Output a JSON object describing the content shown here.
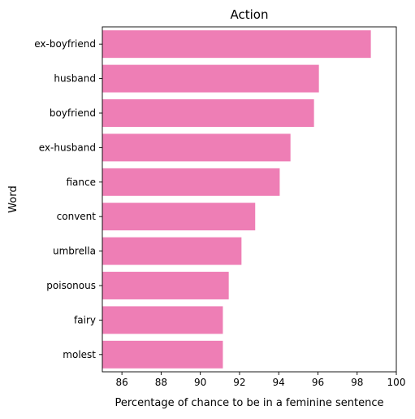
{
  "chart_data": {
    "type": "bar",
    "orientation": "horizontal",
    "title": "Action",
    "xlabel": "Percentage of chance to be in a feminine sentence",
    "ylabel": "Word",
    "categories": [
      "ex-boyfriend",
      "husband",
      "boyfriend",
      "ex-husband",
      "fiance",
      "convent",
      "umbrella",
      "poisonous",
      "fairy",
      "molest"
    ],
    "values": [
      98.7,
      96.05,
      95.8,
      94.6,
      94.05,
      92.8,
      92.1,
      91.45,
      91.15,
      91.15
    ],
    "xlim": [
      85,
      100
    ],
    "xticks": [
      86,
      88,
      90,
      92,
      94,
      96,
      98,
      100
    ],
    "grid": false,
    "legend": "none",
    "bar_color": "#ee7eb5"
  }
}
